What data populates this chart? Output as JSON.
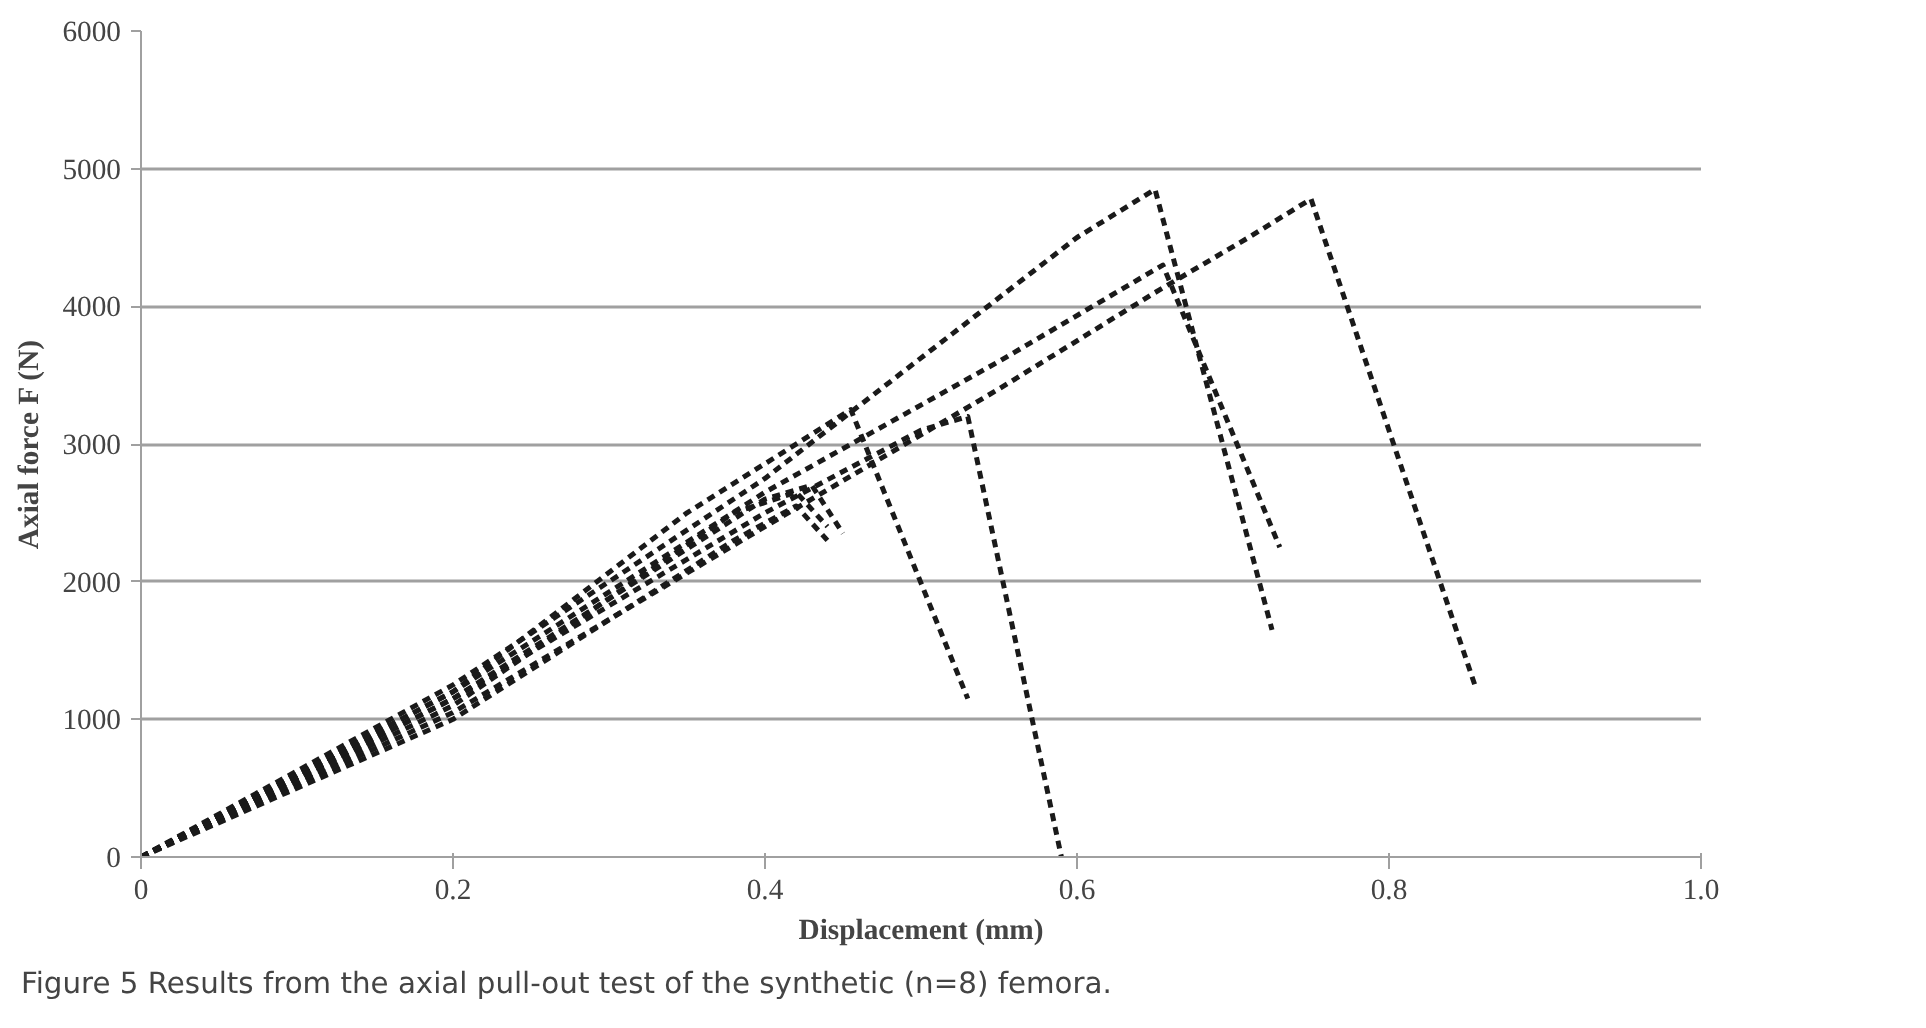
{
  "chart_data": {
    "type": "line",
    "xlabel": "Displacement (mm)",
    "ylabel": "Axial force F (N)",
    "line_style": "dashed",
    "grid": "y",
    "xlim": [
      0,
      1
    ],
    "ylim": [
      0,
      6000
    ],
    "xticks": [
      0,
      0.2,
      0.4,
      0.6,
      0.8,
      {
        "value": 1,
        "label": "1.0"
      }
    ],
    "yticks": [
      0,
      1000,
      2000,
      3000,
      4000,
      5000,
      6000
    ],
    "series": [
      {
        "color": "#1a1a1a",
        "x": [
          0,
          0.2,
          0.4,
          0.52,
          0.6,
          0.65,
          0.725
        ],
        "values": [
          0,
          1250,
          2750,
          3800,
          4500,
          4850,
          1650
        ]
      },
      {
        "color": "#1a1a1a",
        "x": [
          0,
          0.2,
          0.4,
          0.55,
          0.65,
          0.71,
          0.75,
          0.855
        ],
        "values": [
          0,
          1050,
          2400,
          3400,
          4100,
          4500,
          4780,
          1250
        ]
      },
      {
        "color": "#1a1a1a",
        "x": [
          0,
          0.2,
          0.4,
          0.55,
          0.655,
          0.73
        ],
        "values": [
          0,
          1200,
          2650,
          3600,
          4300,
          2250
        ]
      },
      {
        "color": "#1a1a1a",
        "x": [
          0,
          0.2,
          0.4,
          0.5,
          0.53,
          0.59
        ],
        "values": [
          0,
          1150,
          2500,
          3100,
          3200,
          0
        ]
      },
      {
        "color": "#1a1a1a",
        "x": [
          0,
          0.2,
          0.35,
          0.455,
          0.53
        ],
        "values": [
          0,
          1200,
          2500,
          3250,
          1150
        ]
      },
      {
        "color": "#1a1a1a",
        "x": [
          0,
          0.2,
          0.4,
          0.43,
          0.45
        ],
        "values": [
          0,
          1150,
          2600,
          2700,
          2350
        ]
      },
      {
        "color": "#1a1a1a",
        "x": [
          0,
          0.2,
          0.38,
          0.42,
          0.44
        ],
        "values": [
          0,
          1100,
          2500,
          2650,
          2400
        ]
      },
      {
        "color": "#1a1a1a",
        "x": [
          0,
          0.2,
          0.38,
          0.42,
          0.44
        ],
        "values": [
          0,
          1000,
          2300,
          2550,
          2300
        ]
      }
    ],
    "annotations": [
      "Figure 5 Results from the axial pull-out test of the synthetic (n=8) femora."
    ]
  }
}
